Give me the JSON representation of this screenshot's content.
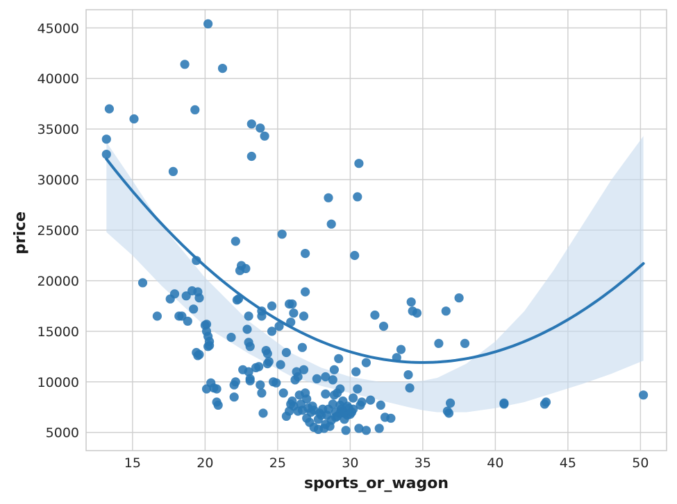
{
  "chart_data": {
    "type": "scatter",
    "title": "",
    "xlabel": "sports_or_wagon",
    "ylabel": "price",
    "xlim": [
      11.8,
      51.8
    ],
    "ylim": [
      3200,
      46800
    ],
    "xticks": [
      15,
      20,
      25,
      30,
      35,
      40,
      45,
      50
    ],
    "yticks": [
      5000,
      10000,
      15000,
      20000,
      25000,
      30000,
      35000,
      40000,
      45000
    ],
    "grid": true,
    "colors": {
      "points": "#2a77b4",
      "fit": "#2a77b4",
      "band": "#c6dbef",
      "grid": "#d0d0d0",
      "frame": "#c8c8c8"
    },
    "points": [
      [
        13.2,
        34000
      ],
      [
        13.2,
        32500
      ],
      [
        13.4,
        37000
      ],
      [
        15.1,
        36000
      ],
      [
        15.7,
        19800
      ],
      [
        16.7,
        16500
      ],
      [
        17.8,
        30800
      ],
      [
        17.6,
        18200
      ],
      [
        17.9,
        18700
      ],
      [
        18.2,
        16500
      ],
      [
        18.4,
        16500
      ],
      [
        18.6,
        41400
      ],
      [
        18.7,
        18500
      ],
      [
        18.8,
        16000
      ],
      [
        19.1,
        19000
      ],
      [
        19.2,
        17200
      ],
      [
        19.3,
        36900
      ],
      [
        19.4,
        22000
      ],
      [
        19.5,
        18900
      ],
      [
        19.6,
        18300
      ],
      [
        19.4,
        12900
      ],
      [
        19.5,
        12600
      ],
      [
        19.6,
        12700
      ],
      [
        20.2,
        45400
      ],
      [
        20.0,
        15600
      ],
      [
        20.1,
        15700
      ],
      [
        20.1,
        15000
      ],
      [
        20.2,
        14500
      ],
      [
        20.3,
        14000
      ],
      [
        20.2,
        13500
      ],
      [
        20.3,
        13600
      ],
      [
        20.1,
        9300
      ],
      [
        20.4,
        9900
      ],
      [
        20.6,
        9400
      ],
      [
        20.8,
        9300
      ],
      [
        20.8,
        8000
      ],
      [
        20.9,
        7700
      ],
      [
        21.2,
        41000
      ],
      [
        21.8,
        14400
      ],
      [
        22.0,
        8500
      ],
      [
        22.0,
        9700
      ],
      [
        22.1,
        10000
      ],
      [
        22.1,
        23900
      ],
      [
        22.2,
        18100
      ],
      [
        22.3,
        18200
      ],
      [
        22.4,
        21000
      ],
      [
        22.5,
        21500
      ],
      [
        22.8,
        21200
      ],
      [
        22.6,
        11200
      ],
      [
        22.9,
        15200
      ],
      [
        23.0,
        13900
      ],
      [
        23.1,
        13500
      ],
      [
        23.0,
        11000
      ],
      [
        23.1,
        10300
      ],
      [
        23.1,
        10100
      ],
      [
        23.0,
        16500
      ],
      [
        23.2,
        35500
      ],
      [
        23.2,
        32300
      ],
      [
        23.5,
        11400
      ],
      [
        23.7,
        11500
      ],
      [
        23.8,
        9700
      ],
      [
        23.9,
        16500
      ],
      [
        23.9,
        17000
      ],
      [
        23.8,
        35100
      ],
      [
        24.1,
        34300
      ],
      [
        24.2,
        13100
      ],
      [
        24.3,
        12800
      ],
      [
        24.4,
        12000
      ],
      [
        24.3,
        11800
      ],
      [
        23.9,
        8900
      ],
      [
        24.0,
        6900
      ],
      [
        24.6,
        17500
      ],
      [
        24.6,
        15000
      ],
      [
        24.7,
        10000
      ],
      [
        24.9,
        9900
      ],
      [
        25.2,
        11700
      ],
      [
        25.1,
        15500
      ],
      [
        25.3,
        24600
      ],
      [
        25.4,
        8900
      ],
      [
        25.6,
        12900
      ],
      [
        25.8,
        17700
      ],
      [
        26.0,
        17700
      ],
      [
        26.1,
        16800
      ],
      [
        25.9,
        15900
      ],
      [
        25.6,
        6600
      ],
      [
        25.8,
        7100
      ],
      [
        25.9,
        7800
      ],
      [
        26.0,
        8100
      ],
      [
        26.1,
        7600
      ],
      [
        26.2,
        10200
      ],
      [
        26.3,
        11000
      ],
      [
        26.4,
        10500
      ],
      [
        26.4,
        7100
      ],
      [
        26.5,
        8700
      ],
      [
        26.6,
        7800
      ],
      [
        26.7,
        7200
      ],
      [
        26.7,
        13400
      ],
      [
        26.8,
        16500
      ],
      [
        26.9,
        22700
      ],
      [
        26.9,
        18900
      ],
      [
        26.8,
        11200
      ],
      [
        26.9,
        8900
      ],
      [
        27.0,
        8300
      ],
      [
        27.1,
        7400
      ],
      [
        27.0,
        6400
      ],
      [
        27.2,
        6000
      ],
      [
        27.3,
        7000
      ],
      [
        27.4,
        7600
      ],
      [
        27.5,
        7200
      ],
      [
        27.5,
        5500
      ],
      [
        27.7,
        10300
      ],
      [
        27.8,
        5300
      ],
      [
        27.8,
        6300
      ],
      [
        27.9,
        6900
      ],
      [
        28.0,
        6700
      ],
      [
        28.1,
        7300
      ],
      [
        28.2,
        5400
      ],
      [
        28.3,
        5800
      ],
      [
        28.3,
        8800
      ],
      [
        28.3,
        10500
      ],
      [
        28.4,
        6700
      ],
      [
        28.5,
        28200
      ],
      [
        28.5,
        7300
      ],
      [
        28.6,
        5600
      ],
      [
        28.7,
        6200
      ],
      [
        28.7,
        25600
      ],
      [
        28.8,
        7800
      ],
      [
        28.8,
        10200
      ],
      [
        28.9,
        8700
      ],
      [
        28.9,
        11200
      ],
      [
        29.0,
        6500
      ],
      [
        29.0,
        7000
      ],
      [
        29.1,
        8900
      ],
      [
        29.1,
        6600
      ],
      [
        29.2,
        12300
      ],
      [
        29.3,
        9300
      ],
      [
        29.3,
        7700
      ],
      [
        29.3,
        6900
      ],
      [
        29.4,
        7300
      ],
      [
        29.5,
        8100
      ],
      [
        29.5,
        7100
      ],
      [
        29.6,
        6900
      ],
      [
        29.6,
        6300
      ],
      [
        29.7,
        5200
      ],
      [
        29.8,
        7600
      ],
      [
        29.8,
        6700
      ],
      [
        29.9,
        7400
      ],
      [
        30.0,
        6800
      ],
      [
        30.1,
        7000
      ],
      [
        30.2,
        7300
      ],
      [
        30.2,
        8400
      ],
      [
        30.3,
        22500
      ],
      [
        30.4,
        11000
      ],
      [
        30.5,
        28300
      ],
      [
        30.5,
        9300
      ],
      [
        30.6,
        31600
      ],
      [
        30.7,
        7700
      ],
      [
        30.6,
        5400
      ],
      [
        30.8,
        8000
      ],
      [
        31.1,
        5200
      ],
      [
        31.1,
        11900
      ],
      [
        31.4,
        8200
      ],
      [
        31.7,
        16600
      ],
      [
        32.0,
        5400
      ],
      [
        32.1,
        7700
      ],
      [
        32.3,
        15500
      ],
      [
        32.4,
        6500
      ],
      [
        32.8,
        6400
      ],
      [
        33.2,
        12400
      ],
      [
        33.5,
        13200
      ],
      [
        34.0,
        10700
      ],
      [
        34.1,
        9400
      ],
      [
        34.2,
        17900
      ],
      [
        34.3,
        17000
      ],
      [
        34.6,
        16800
      ],
      [
        36.1,
        13800
      ],
      [
        36.6,
        17000
      ],
      [
        36.7,
        7100
      ],
      [
        36.8,
        6900
      ],
      [
        36.9,
        7900
      ],
      [
        37.5,
        18300
      ],
      [
        37.9,
        13800
      ],
      [
        40.6,
        7900
      ],
      [
        40.6,
        7800
      ],
      [
        43.4,
        7800
      ],
      [
        43.5,
        8000
      ],
      [
        50.2,
        8700
      ]
    ],
    "fit_line": {
      "x_start": 13.2,
      "x_end": 50.2,
      "quadratic": [
        63785.4,
        -2964.3,
        42.35
      ]
    },
    "ci_band": {
      "x": [
        13.2,
        15,
        17,
        20,
        23,
        26,
        28,
        30,
        32,
        34,
        35,
        36,
        38,
        40,
        42,
        44,
        46,
        48,
        50.2
      ],
      "lower": [
        24800,
        22500,
        19500,
        15500,
        12800,
        10500,
        9600,
        8900,
        8200,
        7500,
        7200,
        7000,
        7000,
        7400,
        8000,
        8900,
        9800,
        10800,
        12100
      ],
      "upper": [
        33700,
        29900,
        25500,
        20300,
        16000,
        12800,
        11400,
        10500,
        10000,
        10000,
        10100,
        10400,
        11800,
        14000,
        17000,
        21000,
        25500,
        30000,
        34300
      ]
    }
  }
}
